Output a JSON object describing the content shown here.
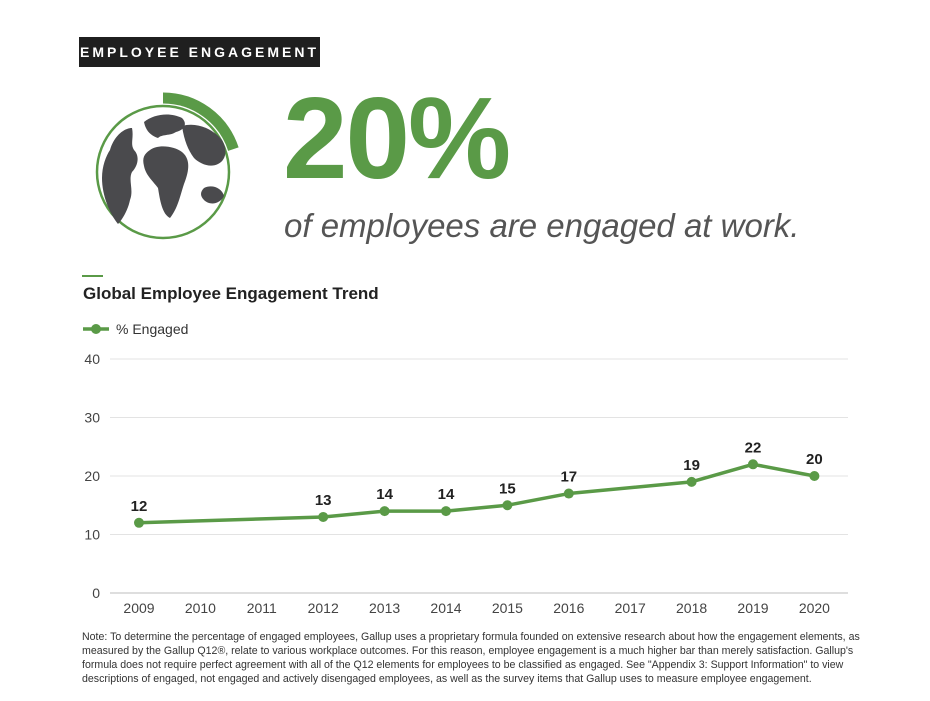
{
  "header": {
    "tag": "EMPLOYEE ENGAGEMENT"
  },
  "hero": {
    "percent": "20%",
    "caption": "of employees are engaged at work.",
    "ring_fraction": 0.2
  },
  "colors": {
    "accent": "#5a9a47",
    "globe": "#4a4a4d",
    "grid": "#e3e3e3"
  },
  "chart_data": {
    "type": "line",
    "title": "Global Employee Engagement Trend",
    "x": [
      "2009",
      "2010",
      "2011",
      "2012",
      "2013",
      "2014",
      "2015",
      "2016",
      "2017",
      "2018",
      "2019",
      "2020"
    ],
    "series": [
      {
        "name": "% Engaged",
        "points": [
          {
            "x": "2009",
            "y": 12
          },
          {
            "x": "2012",
            "y": 13
          },
          {
            "x": "2013",
            "y": 14
          },
          {
            "x": "2014",
            "y": 14
          },
          {
            "x": "2015",
            "y": 15
          },
          {
            "x": "2016",
            "y": 17
          },
          {
            "x": "2018",
            "y": 19
          },
          {
            "x": "2019",
            "y": 22
          },
          {
            "x": "2020",
            "y": 20
          }
        ]
      }
    ],
    "yticks": [
      0,
      10,
      20,
      30,
      40
    ],
    "ylim": [
      0,
      40
    ],
    "grid": true,
    "legend": "top-left"
  },
  "note": "Note: To determine the percentage of engaged employees, Gallup uses a proprietary formula founded on extensive research about how the engagement elements, as measured by the Gallup Q12®, relate to various workplace outcomes. For this reason, employee engagement is a much higher bar than merely satisfaction. Gallup's formula does not require perfect agreement with all of the Q12 elements for employees to be classified as engaged. See \"Appendix 3: Support Information\" to view descriptions of engaged, not engaged and actively disengaged employees, as well as the survey items that Gallup uses to measure employee engagement."
}
